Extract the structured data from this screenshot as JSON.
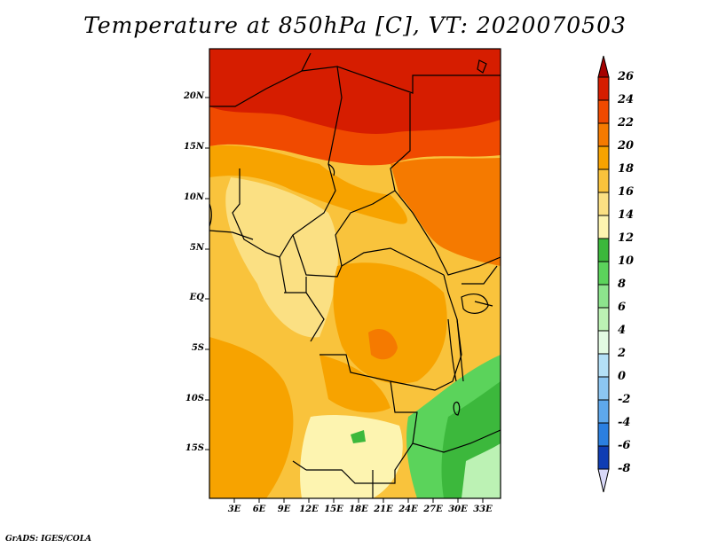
{
  "title": "Temperature at 850hPa [C], VT: 2020070503",
  "credit": "GrADS: IGES/COLA",
  "map": {
    "lat_labels": [
      "20N",
      "15N",
      "10N",
      "5N",
      "EQ",
      "5S",
      "10S",
      "15S"
    ],
    "lon_labels": [
      "3E",
      "6E",
      "9E",
      "12E",
      "15E",
      "18E",
      "21E",
      "24E",
      "27E",
      "30E",
      "33E"
    ]
  },
  "colorbar": {
    "labels": [
      "26",
      "24",
      "22",
      "20",
      "18",
      "16",
      "14",
      "12",
      "10",
      "8",
      "6",
      "4",
      "2",
      "0",
      "-2",
      "-4",
      "-6",
      "-8"
    ],
    "colors": [
      "#a50000",
      "#d61d00",
      "#f04a00",
      "#f57a00",
      "#f7a300",
      "#f9c33c",
      "#fbe083",
      "#fdf4b0",
      "#3cb83c",
      "#5bd35b",
      "#8de48d",
      "#bcf2b4",
      "#e2fae2",
      "#b4e0f7",
      "#8cc6f2",
      "#5ea8ec",
      "#2b7fe0",
      "#1b5ed0",
      "#0f3db3",
      "#0a2187",
      "#05105a",
      "#d8d8f8"
    ]
  }
}
